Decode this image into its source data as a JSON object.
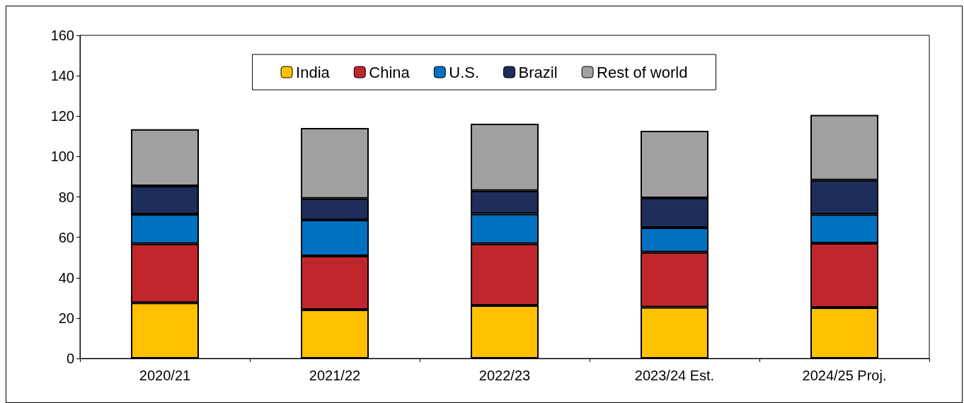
{
  "chart_data": {
    "type": "bar",
    "stacked": true,
    "categories": [
      "2020/21",
      "2021/22",
      "2022/23",
      "2023/24 Est.",
      "2024/25 Proj."
    ],
    "series": [
      {
        "name": "India",
        "color": "#ffc000",
        "values": [
          27.6,
          24.2,
          26.3,
          25.4,
          25.2
        ]
      },
      {
        "name": "China",
        "color": "#c0272d",
        "values": [
          29.2,
          26.6,
          30.5,
          27.2,
          31.9
        ]
      },
      {
        "name": "U.S.",
        "color": "#0070c0",
        "values": [
          14.6,
          17.8,
          14.8,
          12.2,
          14.2
        ]
      },
      {
        "name": "Brazil",
        "color": "#1f2d5a",
        "values": [
          14.0,
          10.6,
          11.5,
          14.7,
          17.0
        ]
      },
      {
        "name": "Rest of world",
        "color": "#a0a0a0",
        "values": [
          28.1,
          34.9,
          33.1,
          33.2,
          32.3
        ]
      }
    ],
    "ylim": [
      0,
      160
    ],
    "yticks": [
      0,
      20,
      40,
      60,
      80,
      100,
      120,
      140,
      160
    ],
    "grid": false,
    "legend": "top"
  }
}
